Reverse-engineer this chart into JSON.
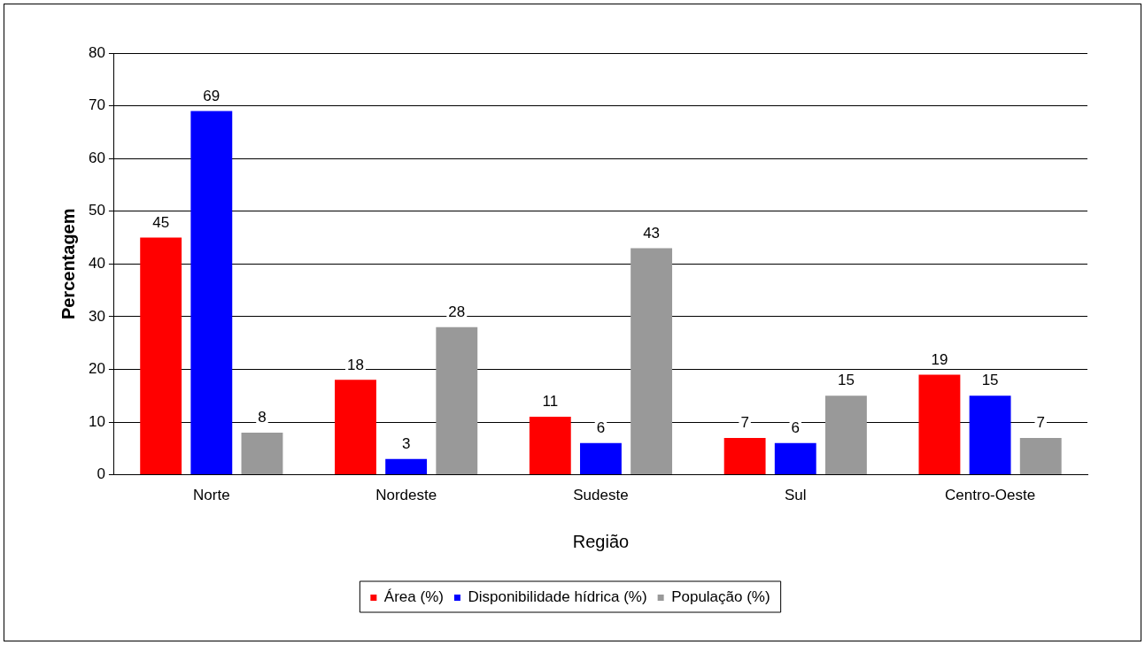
{
  "chart_data": {
    "type": "bar",
    "xlabel": "Região",
    "ylabel": "Percentagem",
    "categories": [
      "Norte",
      "Nordeste",
      "Sudeste",
      "Sul",
      "Centro-Oeste"
    ],
    "series": [
      {
        "name": "Área (%)",
        "color": "#ff0000",
        "values": [
          45,
          18,
          11,
          7,
          19
        ]
      },
      {
        "name": "Disponibilidade hídrica (%)",
        "color": "#0000ff",
        "values": [
          69,
          3,
          6,
          6,
          15
        ]
      },
      {
        "name": "População (%)",
        "color": "#999999",
        "values": [
          8,
          28,
          43,
          15,
          7
        ]
      }
    ],
    "ylim": [
      0,
      80
    ],
    "yticks": [
      0,
      10,
      20,
      30,
      40,
      50,
      60,
      70,
      80
    ],
    "grid": "y",
    "legend": "bottom",
    "data_labels": true
  }
}
